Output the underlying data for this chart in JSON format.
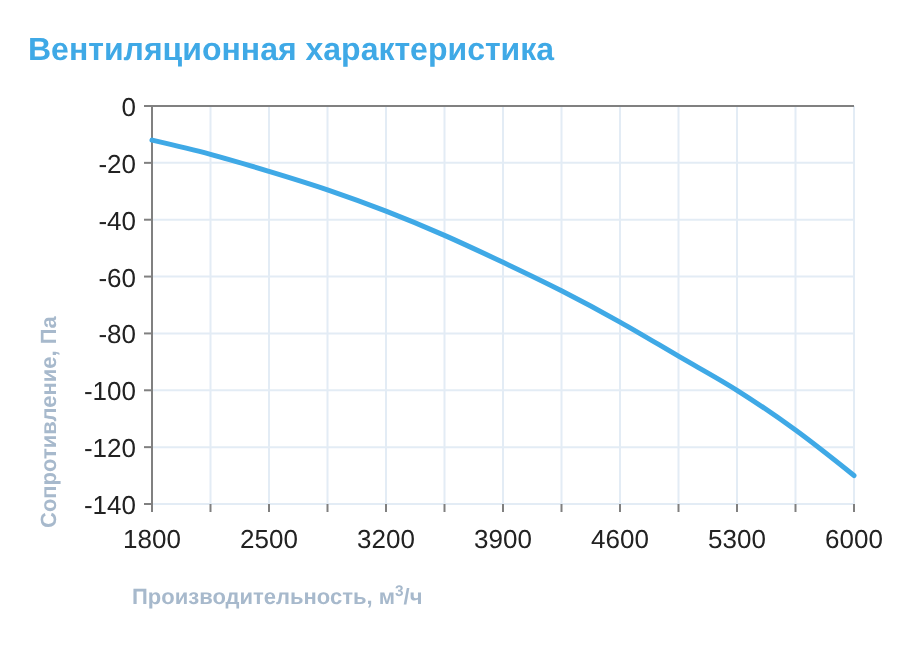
{
  "chart_data": {
    "type": "line",
    "title": "Вентиляционная характеристика",
    "xlabel": "Производительность, м$^{3}$/ч",
    "ylabel": "Сопротивление, Па",
    "x": [
      1800,
      2150,
      2500,
      2850,
      3200,
      3550,
      3900,
      4250,
      4600,
      4950,
      5300,
      5650,
      6000
    ],
    "series": [
      {
        "color": "#3fa9e6",
        "values": [
          -12,
          -17,
          -23,
          -29.5,
          -37,
          -45.5,
          -55,
          -65,
          -76,
          -88,
          -100,
          -114,
          -130
        ]
      }
    ],
    "xlim": [
      1800,
      6000
    ],
    "xticks": [
      1800,
      {
        "value": 2150,
        "label": null
      },
      2500,
      {
        "value": 2850,
        "label": null
      },
      3200,
      {
        "value": 3550,
        "label": null
      },
      3900,
      {
        "value": 4250,
        "label": null
      },
      4600,
      {
        "value": 4950,
        "label": null
      },
      5300,
      {
        "value": 5650,
        "label": null
      },
      6000
    ],
    "ylim": [
      -140,
      0
    ],
    "yticks": [
      0,
      -20,
      -40,
      -60,
      -80,
      -100,
      -120,
      -140
    ],
    "grid": true,
    "marker": "none",
    "line_style": "solid"
  }
}
